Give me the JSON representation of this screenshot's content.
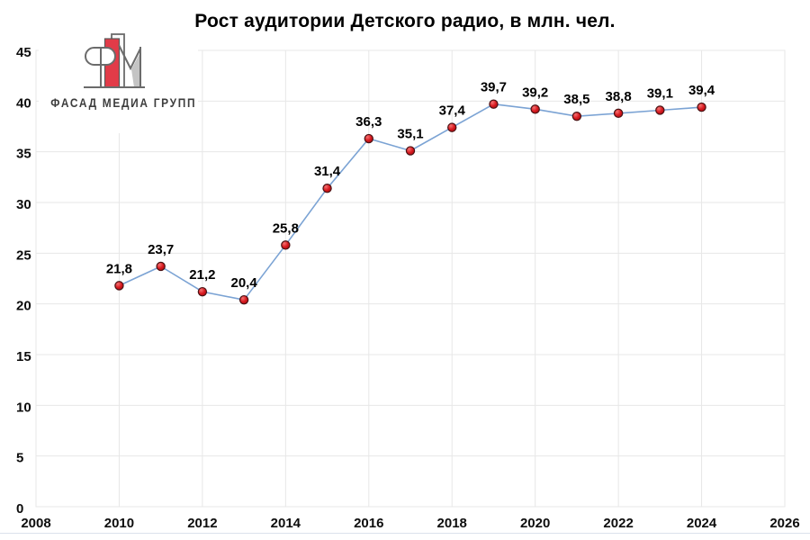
{
  "title": "Рост аудитории Детского радио, в млн. чел.",
  "logo": {
    "text": "ФАСАД МЕДИА ГРУПП"
  },
  "chart_data": {
    "type": "line",
    "title": "Рост аудитории Детского радио, в млн. чел.",
    "x": [
      2010,
      2011,
      2012,
      2013,
      2014,
      2015,
      2016,
      2017,
      2018,
      2019,
      2020,
      2021,
      2022,
      2023,
      2024
    ],
    "values": [
      21.8,
      23.7,
      21.2,
      20.4,
      25.8,
      31.4,
      36.3,
      35.1,
      37.4,
      39.7,
      39.2,
      38.5,
      38.8,
      39.1,
      39.4
    ],
    "point_labels": [
      "21,8",
      "23,7",
      "21,2",
      "20,4",
      "25,8",
      "31,4",
      "36,3",
      "35,1",
      "37,4",
      "39,7",
      "39,2",
      "38,5",
      "38,8",
      "39,1",
      "39,4"
    ],
    "xlabel": "",
    "ylabel": "",
    "xlim": [
      2008,
      2026
    ],
    "ylim": [
      0,
      45
    ],
    "x_ticks": [
      2008,
      2010,
      2012,
      2014,
      2016,
      2018,
      2020,
      2022,
      2024,
      2026
    ],
    "y_ticks": [
      0,
      5,
      10,
      15,
      20,
      25,
      30,
      35,
      40,
      45
    ],
    "grid": true,
    "legend": "none",
    "colors": {
      "line": "#7BA3D4",
      "marker_fill": "#D8191F",
      "marker_highlight": "#F47272",
      "marker_dark": "#A50D12",
      "marker_stroke": "#4A1214",
      "grid": "#E7E7E7",
      "text": "#0d0d0d"
    }
  }
}
